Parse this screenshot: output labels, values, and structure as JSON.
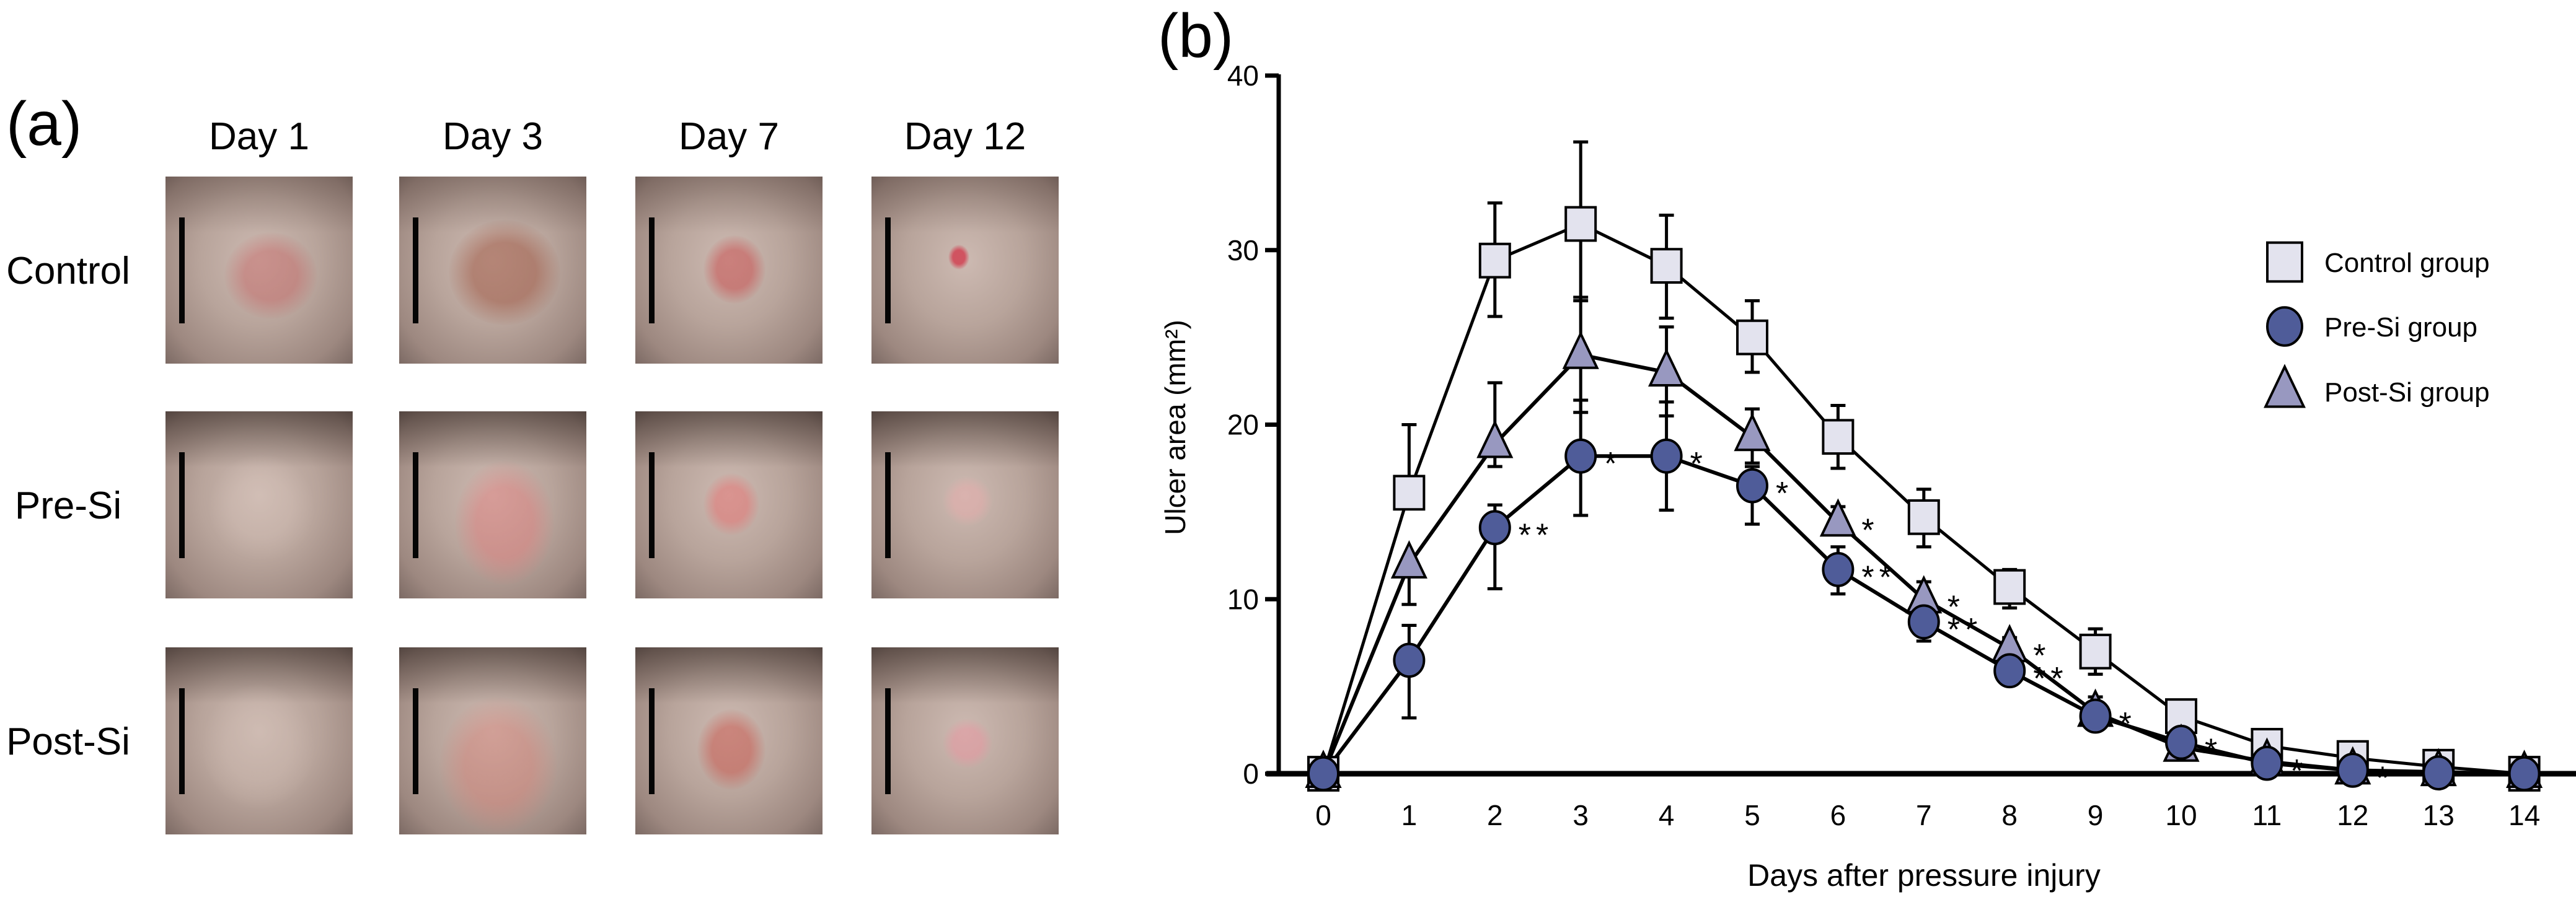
{
  "panel_a": {
    "label": "(a)",
    "columns": [
      "Day 1",
      "Day 3",
      "Day 7",
      "Day 12"
    ],
    "rows": [
      "Control",
      "Pre-Si",
      "Post-Si"
    ],
    "photos_description": "Photographs of pressure-injury wounds on shaved skin, each with a black vertical scale bar"
  },
  "panel_b": {
    "label": "(b)"
  },
  "chart_data": {
    "type": "line",
    "title": "",
    "xlabel": "Days after pressure injury",
    "ylabel": "Ulcer area (mm²)",
    "x": [
      0,
      1,
      2,
      3,
      4,
      5,
      6,
      7,
      8,
      9,
      10,
      11,
      12,
      13,
      14
    ],
    "xticks": [
      "0",
      "1",
      "2",
      "3",
      "4",
      "5",
      "6",
      "7",
      "8",
      "9",
      "10",
      "11",
      "12",
      "13",
      "14"
    ],
    "ylim": [
      0,
      40
    ],
    "yticks": [
      "0",
      "10",
      "20",
      "30",
      "40"
    ],
    "grid": false,
    "legend_position": "right",
    "series": [
      {
        "name": "Control group",
        "marker": "square",
        "color": "#E3E3EE",
        "values": [
          0,
          16.1,
          29.4,
          31.5,
          29.1,
          25.0,
          19.3,
          14.7,
          10.7,
          7.0,
          3.3,
          1.6,
          0.9,
          0.4,
          0
        ],
        "error_upper": [
          0,
          20.0,
          32.7,
          36.2,
          32.0,
          27.1,
          21.1,
          16.3,
          11.7,
          8.3,
          3.3,
          1.6,
          0.9,
          0.4,
          0
        ],
        "error_lower": [
          0,
          16.1,
          26.2,
          27.1,
          26.1,
          23.0,
          17.5,
          13.0,
          9.5,
          5.7,
          3.3,
          1.6,
          0.9,
          0.4,
          0
        ]
      },
      {
        "name": "Pre-Si group",
        "marker": "circle",
        "color": "#4F5C99",
        "values": [
          0,
          6.5,
          14.1,
          18.2,
          18.2,
          16.5,
          11.7,
          8.7,
          5.9,
          3.3,
          1.8,
          0.6,
          0.2,
          0.05,
          0
        ],
        "error_upper": [
          0,
          8.5,
          15.4,
          21.4,
          21.3,
          17.6,
          13.0,
          9.6,
          6.4,
          3.6,
          1.8,
          0.6,
          0.2,
          0.05,
          0
        ],
        "error_lower": [
          0,
          3.2,
          10.6,
          14.8,
          15.1,
          14.3,
          10.3,
          7.6,
          5.5,
          3.0,
          1.8,
          0.6,
          0.2,
          0.05,
          0
        ]
      },
      {
        "name": "Post-Si group",
        "marker": "triangle",
        "color": "#9898C0",
        "values": [
          0,
          12.0,
          18.9,
          24.0,
          23.0,
          19.3,
          14.4,
          10.0,
          7.2,
          3.5,
          1.5,
          0.7,
          0.2,
          0.1,
          0
        ],
        "error_upper": [
          0,
          12.0,
          22.4,
          27.3,
          25.6,
          20.9,
          15.3,
          11.0,
          7.8,
          4.4,
          1.5,
          0.7,
          0.2,
          0.1,
          0
        ],
        "error_lower": [
          0,
          9.7,
          17.6,
          20.7,
          20.5,
          17.8,
          14.4,
          10.0,
          7.2,
          3.5,
          1.5,
          0.7,
          0.2,
          0.1,
          0
        ]
      }
    ],
    "annotations": [
      {
        "day": 2,
        "series": "Pre-Si group",
        "text": "**"
      },
      {
        "day": 3,
        "series": "Pre-Si group",
        "text": "*"
      },
      {
        "day": 4,
        "series": "Pre-Si group",
        "text": "*"
      },
      {
        "day": 5,
        "series": "Pre-Si group",
        "text": "*"
      },
      {
        "day": 6,
        "series": "Post-Si group",
        "text": "*"
      },
      {
        "day": 6,
        "series": "Pre-Si group",
        "text": "**"
      },
      {
        "day": 7,
        "series": "Post-Si group",
        "text": "*"
      },
      {
        "day": 7,
        "series": "Pre-Si group",
        "text": "**"
      },
      {
        "day": 8,
        "series": "Post-Si group",
        "text": "*"
      },
      {
        "day": 8,
        "series": "Pre-Si group",
        "text": "**"
      },
      {
        "day": 9,
        "series": "Pre-Si group",
        "text": "*"
      },
      {
        "day": 10,
        "series": "Pre-Si group",
        "text": "*"
      },
      {
        "day": 11,
        "series": "Pre-Si group",
        "text": "*"
      },
      {
        "day": 12,
        "series": "Pre-Si group",
        "text": "*"
      }
    ]
  }
}
